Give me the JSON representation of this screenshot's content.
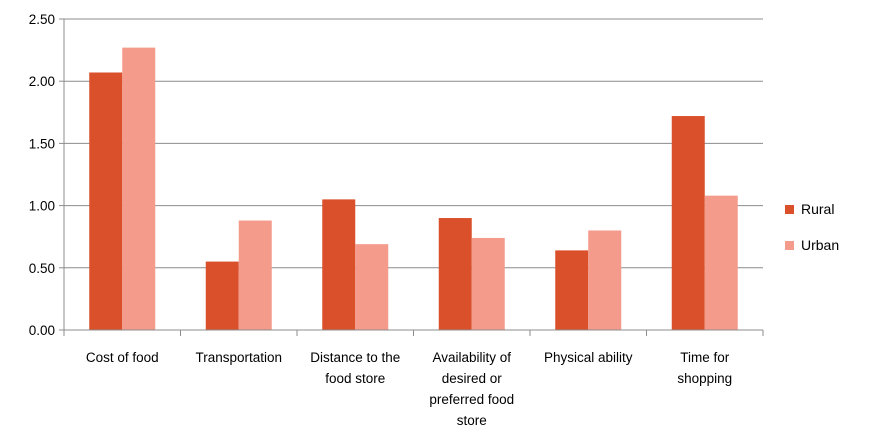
{
  "chart_data": {
    "type": "bar",
    "categories": [
      [
        "Cost of food"
      ],
      [
        "Transportation"
      ],
      [
        "Distance to the",
        "food store"
      ],
      [
        "Availability of",
        "desired or",
        "preferred food",
        "store"
      ],
      [
        "Physical ability"
      ],
      [
        "Time for",
        "shopping"
      ]
    ],
    "series": [
      {
        "name": "Rural",
        "color": "#d9502a",
        "values": [
          2.07,
          0.55,
          1.05,
          0.9,
          0.64,
          1.72
        ]
      },
      {
        "name": "Urban",
        "color": "#f49b8c",
        "values": [
          2.27,
          0.88,
          0.69,
          0.74,
          0.8,
          1.08
        ]
      }
    ],
    "yticks": [
      "0.00",
      "0.50",
      "1.00",
      "1.50",
      "2.00",
      "2.50"
    ],
    "ylim": [
      0,
      2.5
    ],
    "grid": true,
    "legend_position": "right",
    "title": "",
    "xlabel": "",
    "ylabel": ""
  }
}
